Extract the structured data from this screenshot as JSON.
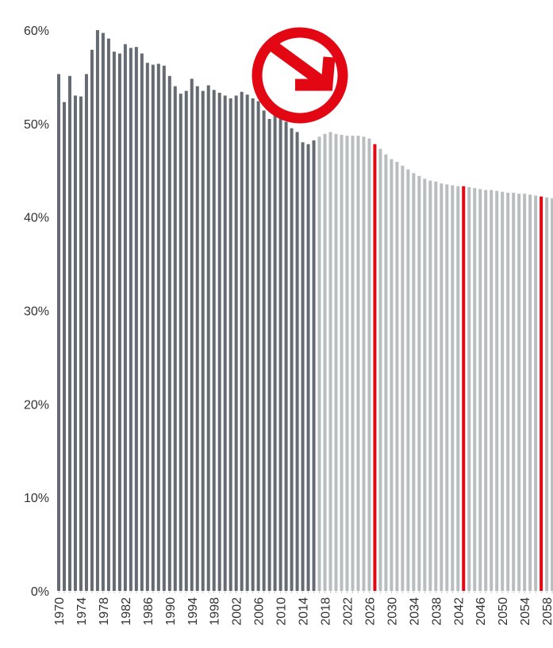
{
  "chart_data": {
    "type": "bar",
    "title": "",
    "xlabel": "",
    "ylabel": "",
    "ylim": [
      0,
      60
    ],
    "y_ticks": [
      {
        "value": 0,
        "label": "0%"
      },
      {
        "value": 10,
        "label": "10%"
      },
      {
        "value": 20,
        "label": "20%"
      },
      {
        "value": 30,
        "label": "30%"
      },
      {
        "value": 40,
        "label": "40%"
      },
      {
        "value": 50,
        "label": "50%"
      },
      {
        "value": 60,
        "label": "60%"
      }
    ],
    "x_tick_labels": [
      "1970",
      "1974",
      "1978",
      "1982",
      "1986",
      "1990",
      "1994",
      "1998",
      "2002",
      "2006",
      "2010",
      "2014",
      "2018",
      "2022",
      "2026",
      "2030",
      "2034",
      "2038",
      "2042",
      "2046",
      "2050",
      "2054",
      "2058"
    ],
    "years": [
      1970,
      1971,
      1972,
      1973,
      1974,
      1975,
      1976,
      1977,
      1978,
      1979,
      1980,
      1981,
      1982,
      1983,
      1984,
      1985,
      1986,
      1987,
      1988,
      1989,
      1990,
      1991,
      1992,
      1993,
      1994,
      1995,
      1996,
      1997,
      1998,
      1999,
      2000,
      2001,
      2002,
      2003,
      2004,
      2005,
      2006,
      2007,
      2008,
      2009,
      2010,
      2011,
      2012,
      2013,
      2014,
      2015,
      2016,
      2017,
      2018,
      2019,
      2020,
      2021,
      2022,
      2023,
      2024,
      2025,
      2026,
      2027,
      2028,
      2029,
      2030,
      2031,
      2032,
      2033,
      2034,
      2035,
      2036,
      2037,
      2038,
      2039,
      2040,
      2041,
      2042,
      2043,
      2044,
      2045,
      2046,
      2047,
      2048,
      2049,
      2050,
      2051,
      2052,
      2053,
      2054,
      2055,
      2056,
      2057,
      2058,
      2059
    ],
    "values": [
      55.3,
      52.3,
      55.1,
      53.0,
      52.9,
      55.3,
      57.9,
      60.0,
      59.7,
      59.1,
      57.7,
      57.5,
      58.5,
      58.1,
      58.2,
      57.5,
      56.5,
      56.3,
      56.4,
      56.2,
      55.1,
      54.0,
      53.2,
      53.5,
      54.8,
      54.0,
      53.5,
      54.1,
      53.6,
      53.3,
      53.0,
      52.7,
      53.0,
      53.4,
      53.1,
      52.7,
      52.4,
      51.4,
      50.5,
      51.0,
      50.9,
      50.2,
      49.5,
      49.1,
      48.0,
      47.8,
      48.2,
      48.6,
      48.9,
      49.1,
      48.9,
      48.8,
      48.7,
      48.7,
      48.7,
      48.6,
      48.4,
      47.8,
      47.3,
      46.7,
      46.2,
      45.9,
      45.5,
      45.1,
      44.7,
      44.4,
      44.1,
      43.9,
      43.8,
      43.6,
      43.5,
      43.4,
      43.3,
      43.3,
      43.2,
      43.1,
      43.0,
      42.9,
      42.9,
      42.8,
      42.7,
      42.6,
      42.6,
      42.5,
      42.5,
      42.4,
      42.3,
      42.2,
      42.1,
      42.0
    ],
    "series": [
      {
        "first_year": 1970,
        "last_year": 2016,
        "color": "#646b72"
      },
      {
        "first_year": 2017,
        "last_year": 2059,
        "color": "#b8bdc0"
      }
    ],
    "highlight_years": [
      2027,
      2043,
      2057
    ],
    "highlight_color": "#e30613",
    "annotation": {
      "type": "down-arrow-in-circle",
      "color": "#e30613"
    },
    "grid": false
  }
}
